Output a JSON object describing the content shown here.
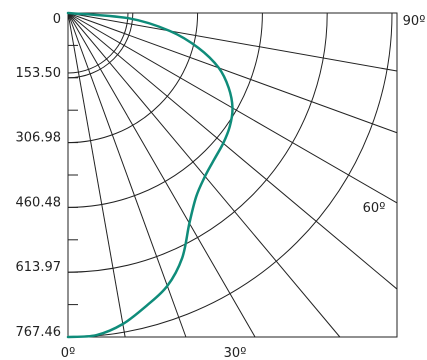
{
  "chart_data": {
    "type": "polar-intensity-distribution",
    "radial_axis": {
      "ticks": [
        "0",
        "153.50",
        "306.98",
        "460.48",
        "613.97",
        "767.46"
      ],
      "range": [
        0,
        767.46
      ]
    },
    "angular_axis": {
      "labels": [
        "0º",
        "30º",
        "60º",
        "90º"
      ],
      "values": [
        0,
        30,
        60,
        90
      ],
      "spoke_step_deg": 10
    },
    "series": [
      {
        "name": "",
        "color": "#0f8c7a",
        "points": [
          {
            "angle": 0,
            "value": 767.46
          },
          {
            "angle": 5,
            "value": 766
          },
          {
            "angle": 10,
            "value": 748
          },
          {
            "angle": 15,
            "value": 718
          },
          {
            "angle": 20,
            "value": 688
          },
          {
            "angle": 25,
            "value": 640
          },
          {
            "angle": 30,
            "value": 575
          },
          {
            "angle": 35,
            "value": 530
          },
          {
            "angle": 40,
            "value": 505
          },
          {
            "angle": 45,
            "value": 490
          },
          {
            "angle": 50,
            "value": 480
          },
          {
            "angle": 55,
            "value": 468
          },
          {
            "angle": 60,
            "value": 450
          },
          {
            "angle": 65,
            "value": 420
          },
          {
            "angle": 70,
            "value": 380
          },
          {
            "angle": 75,
            "value": 320
          },
          {
            "angle": 80,
            "value": 245
          },
          {
            "angle": 85,
            "value": 145
          },
          {
            "angle": 90,
            "value": 0
          }
        ]
      }
    ],
    "grid": true
  }
}
